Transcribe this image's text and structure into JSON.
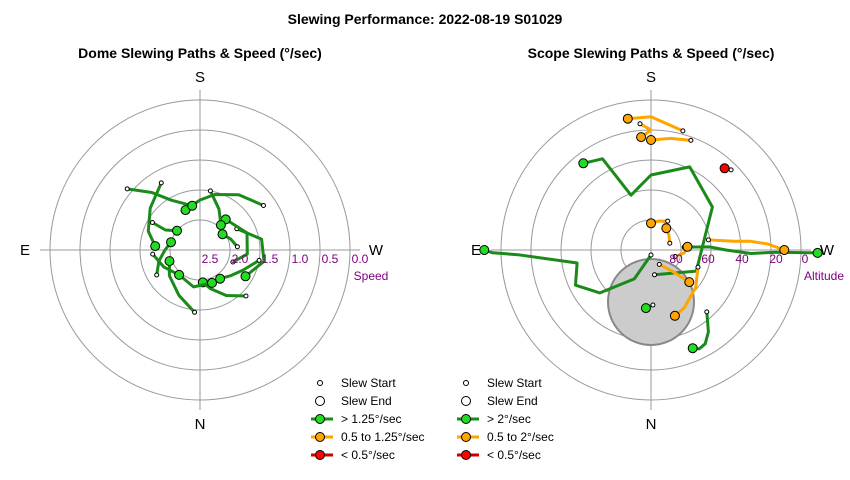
{
  "title": "Slewing Performance: 2022-08-19 S01029",
  "colors": {
    "fast": "#1a8a1a",
    "fast_fill": "#22dd22",
    "medium": "#ffa500",
    "slow": "#cc0000",
    "slow_fill": "#ff0000",
    "ring": "#999999",
    "ring_label": "#800080",
    "obscured": "#cccccc"
  },
  "chart_data": [
    {
      "type": "scatter",
      "title": "Dome Slewing Paths & Speed (°/sec)",
      "projection": "polar",
      "directions": {
        "top": "S",
        "bottom": "N",
        "left": "E",
        "right": "W"
      },
      "ring_labels": [
        "2.5",
        "2.0",
        "1.5",
        "1.0",
        "0.5",
        "0.0"
      ],
      "axis_label": "Speed",
      "legend": [
        "Slew Start",
        "Slew End",
        "> 1.25°/sec",
        "0.5 to 1.25°/sec",
        "< 0.5°/sec"
      ],
      "slews": [
        {
          "speed_class": "fast",
          "points": [
            [
              1.7,
              45
            ],
            [
              1.95,
              60
            ],
            [
              2.2,
              75
            ],
            [
              2.35,
              85
            ]
          ]
        },
        {
          "speed_class": "fast",
          "points": [
            [
              1.8,
              10
            ],
            [
              2.05,
              25
            ],
            [
              2.2,
              40
            ],
            [
              2.3,
              55
            ]
          ]
        },
        {
          "speed_class": "fast",
          "points": [
            [
              1.45,
              -35
            ],
            [
              1.65,
              -55
            ],
            [
              1.85,
              -75
            ],
            [
              2.0,
              -90
            ],
            [
              2.15,
              -110
            ]
          ]
        },
        {
          "speed_class": "fast",
          "points": [
            [
              1.45,
              -120
            ],
            [
              1.7,
              -140
            ],
            [
              1.9,
              -160
            ],
            [
              2.1,
              -175
            ]
          ]
        },
        {
          "speed_class": "fast",
          "points": [
            [
              1.1,
              -140
            ],
            [
              1.5,
              -130
            ],
            [
              1.85,
              -120
            ],
            [
              2.1,
              -100
            ]
          ]
        },
        {
          "speed_class": "fast",
          "points": [
            [
              1.75,
              95
            ],
            [
              2.0,
              115
            ],
            [
              2.2,
              140
            ],
            [
              2.35,
              160
            ]
          ]
        },
        {
          "speed_class": "fast",
          "points": [
            [
              2.15,
              -30
            ],
            [
              1.75,
              -10
            ],
            [
              1.7,
              10
            ],
            [
              1.95,
              30
            ]
          ]
        },
        {
          "speed_class": "fast",
          "points": [
            [
              2.3,
              20
            ],
            [
              2.05,
              5
            ],
            [
              2.0,
              -20
            ],
            [
              2.2,
              -50
            ]
          ]
        },
        {
          "speed_class": "fast",
          "points": [
            [
              1.8,
              -80
            ],
            [
              2.1,
              -65
            ],
            [
              2.35,
              -50
            ]
          ]
        },
        {
          "speed_class": "fast",
          "points": [
            [
              2.35,
              130
            ],
            [
              2.25,
              100
            ],
            [
              2.3,
              70
            ]
          ]
        },
        {
          "speed_class": "fast",
          "points": [
            [
              2.0,
              150
            ],
            [
              2.15,
              165
            ],
            [
              2.3,
              180
            ],
            [
              2.4,
              -165
            ]
          ]
        },
        {
          "speed_class": "fast",
          "points": [
            [
              1.9,
              -150
            ],
            [
              2.2,
              -150
            ],
            [
              2.4,
              -140
            ]
          ]
        },
        {
          "speed_class": "fast",
          "points": [
            [
              2.25,
              -5
            ],
            [
              2.35,
              -20
            ],
            [
              2.45,
              -35
            ]
          ]
        },
        {
          "speed_class": "fast",
          "points": [
            [
              2.05,
              175
            ],
            [
              2.2,
              155
            ],
            [
              2.35,
              130
            ]
          ]
        }
      ]
    },
    {
      "type": "scatter",
      "title": "Scope Slewing Paths & Speed (°/sec)",
      "projection": "polar",
      "directions": {
        "top": "S",
        "bottom": "N",
        "left": "E",
        "right": "W"
      },
      "ring_labels": [
        "80",
        "60",
        "40",
        "20",
        "0"
      ],
      "axis_label": "Altitude",
      "legend": [
        "Slew Start",
        "Slew End",
        "> 2°/sec",
        "0.5 to 2°/sec",
        "< 0.5°/sec"
      ],
      "slews": [
        {
          "speed_class": "fast",
          "points": [
            [
              75,
              82
            ],
            [
              60,
              25
            ],
            [
              45,
              -35
            ],
            [
              35,
              -65
            ],
            [
              45,
              -90
            ],
            [
              55,
              -110
            ],
            [
              28,
              -118
            ],
            [
              24,
              -128
            ]
          ]
        },
        {
          "speed_class": "fast",
          "points": [
            [
              87,
              90
            ],
            [
              70,
              120
            ],
            [
              50,
              140
            ],
            [
              40,
              155
            ],
            [
              45,
              170
            ],
            [
              10,
              178
            ],
            [
              -5,
              179
            ],
            [
              -10,
              180
            ]
          ]
        },
        {
          "speed_class": "fast",
          "points": [
            [
              70,
              -5
            ],
            [
              55,
              -3
            ],
            [
              45,
              0
            ],
            [
              30,
              2
            ],
            [
              15,
              1
            ],
            [
              -10,
              1
            ]
          ]
        },
        {
          "speed_class": "fast",
          "points": [
            [
              57,
              88
            ],
            [
              56,
              92
            ],
            [
              55,
              95
            ]
          ]
        },
        {
          "speed_class": "fast",
          "points": [
            [
              40,
              48
            ],
            [
              30,
              55
            ],
            [
              25,
              60
            ],
            [
              24,
              64
            ],
            [
              26,
              67
            ]
          ]
        },
        {
          "speed_class": "medium",
          "points": [
            [
              20,
              -70
            ],
            [
              22,
              -80
            ],
            [
              24,
              -90
            ]
          ]
        },
        {
          "speed_class": "medium",
          "points": [
            [
              14,
              -95
            ],
            [
              18,
              -90
            ],
            [
              22,
              -95
            ]
          ]
        },
        {
          "speed_class": "medium",
          "points": [
            [
              60,
              20
            ],
            [
              55,
              40
            ],
            [
              50,
              60
            ],
            [
              48,
              70
            ]
          ]
        },
        {
          "speed_class": "medium",
          "points": [
            [
              80,
              60
            ],
            [
              72,
              45
            ],
            [
              60,
              40
            ]
          ]
        },
        {
          "speed_class": "medium",
          "points": [
            [
              55,
              -10
            ],
            [
              40,
              -6
            ],
            [
              30,
              -5
            ],
            [
              20,
              -3
            ],
            [
              10,
              0
            ]
          ]
        },
        {
          "speed_class": "medium",
          "points": [
            [
              16,
              -75
            ],
            [
              10,
              -90
            ],
            [
              10,
              -100
            ]
          ]
        },
        {
          "speed_class": "medium",
          "points": [
            [
              75,
              15
            ],
            [
              70,
              5
            ],
            [
              68,
              -5
            ]
          ]
        },
        {
          "speed_class": "medium",
          "points": [
            [
              78,
              -20
            ],
            [
              76,
              -40
            ],
            [
              74,
              -55
            ]
          ]
        },
        {
          "speed_class": "medium",
          "points": [
            [
              70,
              -60
            ],
            [
              72,
              -75
            ],
            [
              74,
              -90
            ]
          ]
        },
        {
          "speed_class": "slow",
          "points": [
            [
              22,
              -45
            ],
            [
              23,
              -47
            ],
            [
              24,
              -48
            ]
          ]
        }
      ]
    }
  ]
}
